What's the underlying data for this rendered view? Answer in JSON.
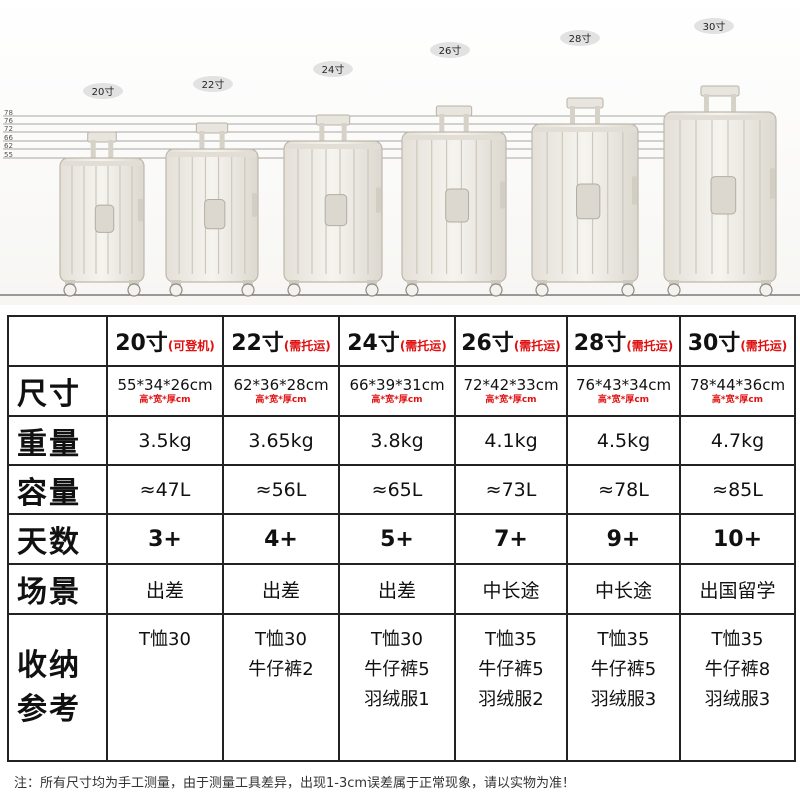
{
  "header": {
    "sizes": [
      "20寸",
      "22寸",
      "24寸",
      "26寸",
      "28寸",
      "30寸"
    ],
    "ruler_ticks": [
      "78",
      "76",
      "72",
      "66",
      "62",
      "55"
    ]
  },
  "colors": {
    "note_red": "#e01010",
    "border": "#222222",
    "luggage": "#efece6",
    "luggage_shade": "#d9d5cc"
  },
  "table": {
    "rows": {
      "size": "尺寸",
      "weight": "重量",
      "capacity": "容量",
      "days": "天数",
      "scene": "场景",
      "storage_line1": "收纳",
      "storage_line2": "参考"
    },
    "columns": [
      {
        "name": "20寸",
        "note": "(可登机)",
        "dims": "55*34*26cm",
        "dims_note": "高*宽*厚cm",
        "weight": "3.5kg",
        "capacity": "≈47L",
        "days": "3+",
        "scene": "出差",
        "storage": [
          "T恤30"
        ]
      },
      {
        "name": "22寸",
        "note": "(需托运)",
        "dims": "62*36*28cm",
        "dims_note": "高*宽*厚cm",
        "weight": "3.65kg",
        "capacity": "≈56L",
        "days": "4+",
        "scene": "出差",
        "storage": [
          "T恤30",
          "牛仔裤2"
        ]
      },
      {
        "name": "24寸",
        "note": "(需托运)",
        "dims": "66*39*31cm",
        "dims_note": "高*宽*厚cm",
        "weight": "3.8kg",
        "capacity": "≈65L",
        "days": "5+",
        "scene": "出差",
        "storage": [
          "T恤30",
          "牛仔裤5",
          "羽绒服1"
        ]
      },
      {
        "name": "26寸",
        "note": "(需托运)",
        "dims": "72*42*33cm",
        "dims_note": "高*宽*厚cm",
        "weight": "4.1kg",
        "capacity": "≈73L",
        "days": "7+",
        "scene": "中长途",
        "storage": [
          "T恤35",
          "牛仔裤5",
          "羽绒服2"
        ]
      },
      {
        "name": "28寸",
        "note": "(需托运)",
        "dims": "76*43*34cm",
        "dims_note": "高*宽*厚cm",
        "weight": "4.5kg",
        "capacity": "≈78L",
        "days": "9+",
        "scene": "中长途",
        "storage": [
          "T恤35",
          "牛仔裤5",
          "羽绒服3"
        ]
      },
      {
        "name": "30寸",
        "note": "(需托运)",
        "dims": "78*44*36cm",
        "dims_note": "高*宽*厚cm",
        "weight": "4.7kg",
        "capacity": "≈85L",
        "days": "10+",
        "scene": "出国留学",
        "storage": [
          "T恤35",
          "牛仔裤8",
          "羽绒服3"
        ]
      }
    ]
  },
  "footnote": "注：所有尺寸均为手工测量，由于测量工具差异，出现1-3cm误差属于正常现象，请以实物为准！"
}
